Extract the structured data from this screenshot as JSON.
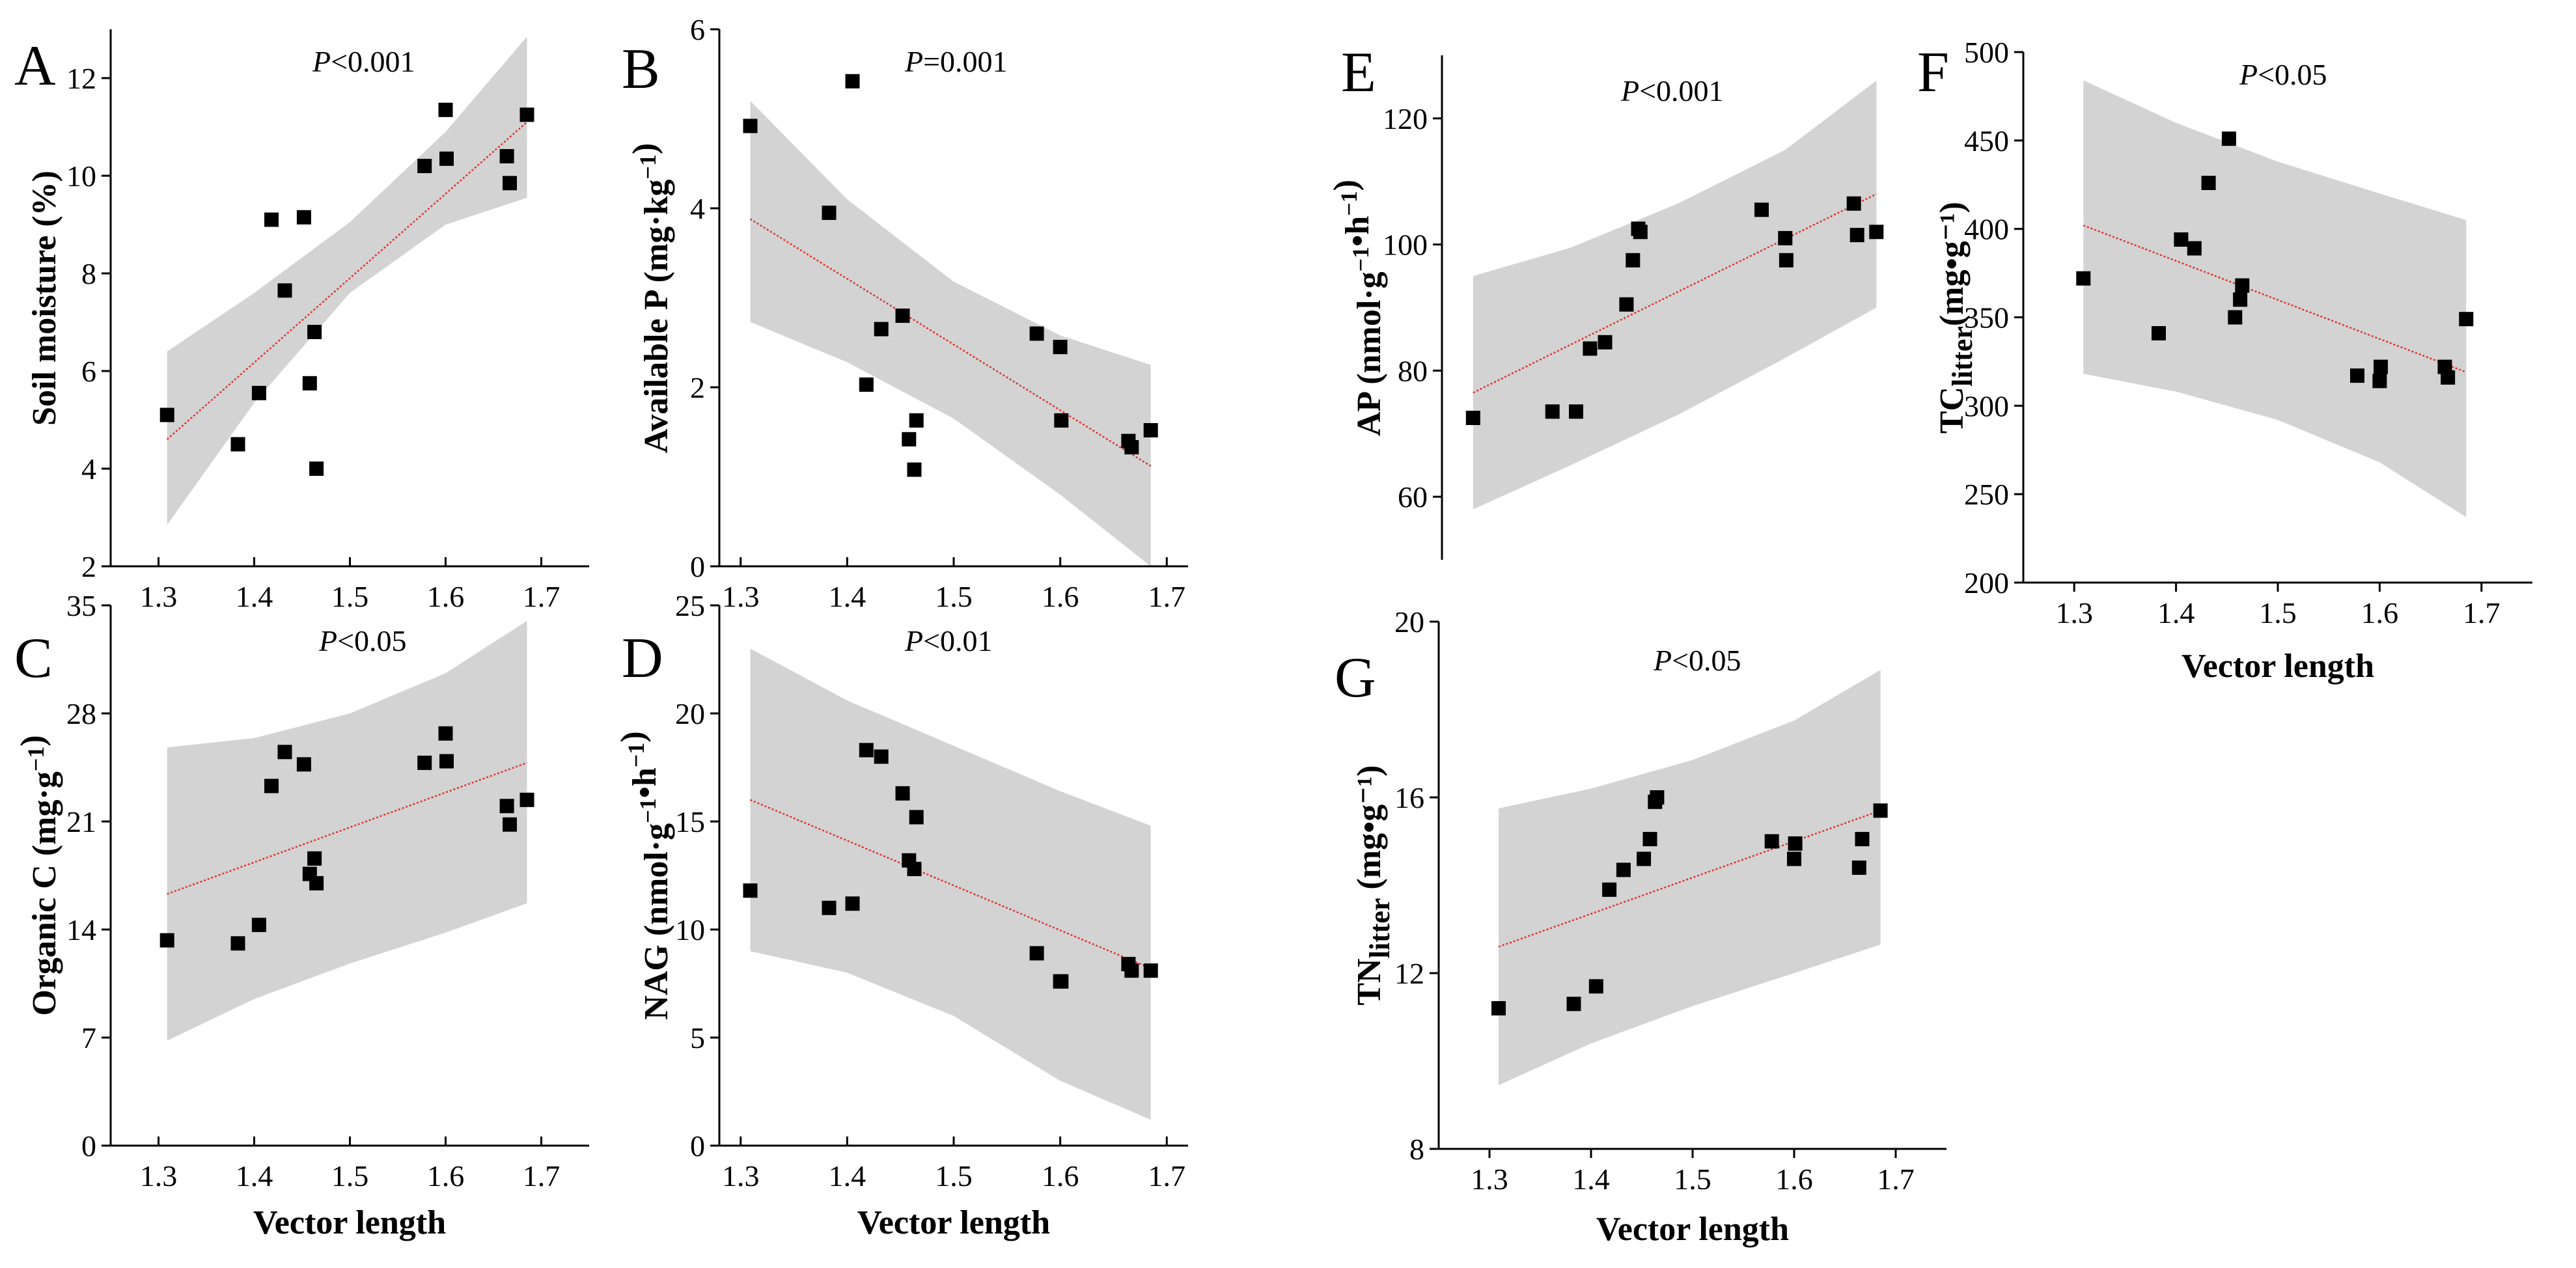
{
  "figure": {
    "colors": {
      "band": "#d3d3d3",
      "fit_line": "#e0302a",
      "points": "#000000",
      "axis": "#000000"
    }
  },
  "chart_data": [
    {
      "id": "A",
      "type": "scatter",
      "letter": "A",
      "ylabel": "Soil moisture (%)",
      "xlabel": "Vector length",
      "xlim": [
        1.25,
        1.75
      ],
      "ylim": [
        2,
        13
      ],
      "xticks": [
        1.3,
        1.4,
        1.5,
        1.6,
        1.7
      ],
      "xtick_labels": [
        "1.3",
        "1.4",
        "1.5",
        "1.6",
        "1.7"
      ],
      "yticks": [
        2,
        4,
        6,
        8,
        10,
        12
      ],
      "ytick_labels": [
        "2",
        "4",
        "6",
        "8",
        "10",
        "12"
      ],
      "p_prefix": "P",
      "p_rest": "<0.001",
      "points": [
        [
          1.309,
          5.1
        ],
        [
          1.383,
          4.5
        ],
        [
          1.405,
          5.55
        ],
        [
          1.418,
          9.1
        ],
        [
          1.432,
          7.65
        ],
        [
          1.452,
          9.15
        ],
        [
          1.458,
          5.75
        ],
        [
          1.463,
          6.8
        ],
        [
          1.465,
          4.0
        ],
        [
          1.578,
          10.2
        ],
        [
          1.6,
          11.35
        ],
        [
          1.601,
          10.35
        ],
        [
          1.664,
          10.4
        ],
        [
          1.667,
          9.85
        ],
        [
          1.685,
          11.25
        ]
      ],
      "fit": [
        [
          1.309,
          4.6
        ],
        [
          1.685,
          11.1
        ]
      ],
      "band_upper": [
        [
          1.309,
          6.4
        ],
        [
          1.4,
          7.6
        ],
        [
          1.5,
          9.05
        ],
        [
          1.6,
          10.9
        ],
        [
          1.685,
          12.85
        ]
      ],
      "band_lower": [
        [
          1.309,
          2.85
        ],
        [
          1.4,
          5.35
        ],
        [
          1.5,
          7.6
        ],
        [
          1.6,
          9.0
        ],
        [
          1.685,
          9.55
        ]
      ]
    },
    {
      "id": "B",
      "type": "scatter",
      "letter": "B",
      "ylabel": "Available P (mg·kg⁻¹)",
      "xlabel": "Vector length",
      "xlim": [
        1.28,
        1.72
      ],
      "ylim": [
        0,
        6
      ],
      "xticks": [
        1.3,
        1.4,
        1.5,
        1.6,
        1.7
      ],
      "xtick_labels": [
        "1.3",
        "1.4",
        "1.5",
        "1.6",
        "1.7"
      ],
      "yticks": [
        0,
        2,
        4,
        6
      ],
      "ytick_labels": [
        "0",
        "2",
        "4",
        "6"
      ],
      "p_prefix": "P",
      "p_rest": "=0.001",
      "points": [
        [
          1.309,
          4.92
        ],
        [
          1.383,
          3.95
        ],
        [
          1.405,
          5.42
        ],
        [
          1.418,
          2.03
        ],
        [
          1.432,
          2.65
        ],
        [
          1.452,
          2.8
        ],
        [
          1.458,
          1.42
        ],
        [
          1.463,
          1.08
        ],
        [
          1.465,
          1.63
        ],
        [
          1.578,
          2.6
        ],
        [
          1.6,
          2.45
        ],
        [
          1.601,
          1.63
        ],
        [
          1.664,
          1.4
        ],
        [
          1.667,
          1.33
        ],
        [
          1.685,
          1.52
        ]
      ],
      "fit": [
        [
          1.309,
          3.88
        ],
        [
          1.685,
          1.12
        ]
      ],
      "band_upper": [
        [
          1.309,
          5.2
        ],
        [
          1.4,
          4.1
        ],
        [
          1.5,
          3.18
        ],
        [
          1.6,
          2.58
        ],
        [
          1.685,
          2.25
        ]
      ],
      "band_lower": [
        [
          1.309,
          2.73
        ],
        [
          1.4,
          2.28
        ],
        [
          1.5,
          1.65
        ],
        [
          1.6,
          0.8
        ],
        [
          1.685,
          0.0
        ]
      ]
    },
    {
      "id": "C",
      "type": "scatter",
      "letter": "C",
      "ylabel": "Organic C (mg·g⁻¹)",
      "xlabel": "Vector length",
      "xlim": [
        1.25,
        1.75
      ],
      "ylim": [
        0,
        35
      ],
      "xticks": [
        1.3,
        1.4,
        1.5,
        1.6,
        1.7
      ],
      "xtick_labels": [
        "1.3",
        "1.4",
        "1.5",
        "1.6",
        "1.7"
      ],
      "yticks": [
        0,
        7,
        14,
        21,
        28,
        35
      ],
      "ytick_labels": [
        "0",
        "7",
        "14",
        "21",
        "28",
        "35"
      ],
      "p_prefix": "P",
      "p_rest": "<0.05",
      "points": [
        [
          1.309,
          13.3
        ],
        [
          1.383,
          13.1
        ],
        [
          1.405,
          14.3
        ],
        [
          1.418,
          23.3
        ],
        [
          1.432,
          25.5
        ],
        [
          1.452,
          24.7
        ],
        [
          1.458,
          17.6
        ],
        [
          1.463,
          18.6
        ],
        [
          1.465,
          17.0
        ],
        [
          1.578,
          24.8
        ],
        [
          1.6,
          26.7
        ],
        [
          1.601,
          24.9
        ],
        [
          1.664,
          22.0
        ],
        [
          1.667,
          20.8
        ],
        [
          1.685,
          22.4
        ]
      ],
      "fit": [
        [
          1.309,
          16.3
        ],
        [
          1.685,
          24.8
        ]
      ],
      "band_upper": [
        [
          1.309,
          25.8
        ],
        [
          1.4,
          26.4
        ],
        [
          1.5,
          28.0
        ],
        [
          1.6,
          30.6
        ],
        [
          1.685,
          34.0
        ]
      ],
      "band_lower": [
        [
          1.309,
          6.8
        ],
        [
          1.4,
          9.5
        ],
        [
          1.5,
          11.8
        ],
        [
          1.6,
          13.8
        ],
        [
          1.685,
          15.7
        ]
      ]
    },
    {
      "id": "D",
      "type": "scatter",
      "letter": "D",
      "ylabel": "NAG (nmol·g⁻¹•h⁻¹)",
      "xlabel": "Vector length",
      "xlim": [
        1.28,
        1.72
      ],
      "ylim": [
        0,
        25
      ],
      "xticks": [
        1.3,
        1.4,
        1.5,
        1.6,
        1.7
      ],
      "xtick_labels": [
        "1.3",
        "1.4",
        "1.5",
        "1.6",
        "1.7"
      ],
      "yticks": [
        0,
        5,
        10,
        15,
        20,
        25
      ],
      "ytick_labels": [
        "0",
        "5",
        "10",
        "15",
        "20",
        "25"
      ],
      "p_prefix": "P",
      "p_rest": "<0.01",
      "points": [
        [
          1.309,
          11.8
        ],
        [
          1.383,
          11.0
        ],
        [
          1.405,
          11.2
        ],
        [
          1.418,
          18.3
        ],
        [
          1.432,
          18.0
        ],
        [
          1.452,
          16.3
        ],
        [
          1.458,
          13.2
        ],
        [
          1.463,
          12.8
        ],
        [
          1.465,
          15.2
        ],
        [
          1.578,
          8.9
        ],
        [
          1.6,
          7.6
        ],
        [
          1.601,
          7.6
        ],
        [
          1.664,
          8.4
        ],
        [
          1.667,
          8.1
        ],
        [
          1.685,
          8.1
        ]
      ],
      "fit": [
        [
          1.309,
          16.0
        ],
        [
          1.685,
          8.2
        ]
      ],
      "band_upper": [
        [
          1.309,
          23.0
        ],
        [
          1.4,
          20.6
        ],
        [
          1.5,
          18.5
        ],
        [
          1.6,
          16.4
        ],
        [
          1.685,
          14.8
        ]
      ],
      "band_lower": [
        [
          1.309,
          9.0
        ],
        [
          1.4,
          8.0
        ],
        [
          1.5,
          6.0
        ],
        [
          1.6,
          3.0
        ],
        [
          1.685,
          1.2
        ]
      ]
    },
    {
      "id": "E",
      "type": "scatter",
      "letter": "E",
      "ylabel": "AP (nmol·g⁻¹•h⁻¹)",
      "xlabel": "",
      "xlim": [
        1.28,
        1.72
      ],
      "ylim": [
        50,
        130
      ],
      "xticks": [],
      "xtick_labels": [],
      "yticks": [
        60,
        80,
        100,
        120
      ],
      "ytick_labels": [
        "60",
        "80",
        "100",
        "120"
      ],
      "p_prefix": "P",
      "p_rest": "<0.001",
      "points": [
        [
          1.309,
          72.5
        ],
        [
          1.383,
          73.5
        ],
        [
          1.405,
          73.5
        ],
        [
          1.418,
          83.5
        ],
        [
          1.432,
          84.5
        ],
        [
          1.452,
          90.5
        ],
        [
          1.458,
          97.5
        ],
        [
          1.463,
          102.5
        ],
        [
          1.465,
          102.0
        ],
        [
          1.578,
          105.5
        ],
        [
          1.6,
          101.0
        ],
        [
          1.601,
          97.5
        ],
        [
          1.664,
          106.5
        ],
        [
          1.667,
          101.5
        ],
        [
          1.685,
          102.0
        ]
      ],
      "fit": [
        [
          1.309,
          76.5
        ],
        [
          1.685,
          108.0
        ]
      ],
      "band_upper": [
        [
          1.309,
          95.0
        ],
        [
          1.4,
          99.5
        ],
        [
          1.5,
          106.5
        ],
        [
          1.6,
          115.0
        ],
        [
          1.685,
          126.0
        ]
      ],
      "band_lower": [
        [
          1.309,
          58.0
        ],
        [
          1.4,
          65.0
        ],
        [
          1.5,
          73.0
        ],
        [
          1.6,
          82.0
        ],
        [
          1.685,
          90.0
        ]
      ]
    },
    {
      "id": "F",
      "type": "scatter",
      "letter": "F",
      "ylabel": "TClitter(mg•g⁻¹)",
      "xlabel": "Vector length",
      "xlim": [
        1.25,
        1.75
      ],
      "ylim": [
        200,
        500
      ],
      "xticks": [
        1.3,
        1.4,
        1.5,
        1.6,
        1.7
      ],
      "xtick_labels": [
        "1.3",
        "1.4",
        "1.5",
        "1.6",
        "1.7"
      ],
      "yticks": [
        200,
        250,
        300,
        350,
        400,
        450,
        500
      ],
      "ytick_labels": [
        "200",
        "250",
        "300",
        "350",
        "400",
        "450",
        "500"
      ],
      "p_prefix": "P",
      "p_rest": "<0.05",
      "points": [
        [
          1.309,
          372
        ],
        [
          1.383,
          341
        ],
        [
          1.405,
          394
        ],
        [
          1.418,
          389
        ],
        [
          1.432,
          426
        ],
        [
          1.452,
          451
        ],
        [
          1.458,
          350
        ],
        [
          1.463,
          360
        ],
        [
          1.465,
          368
        ],
        [
          1.578,
          317
        ],
        [
          1.6,
          314
        ],
        [
          1.601,
          322
        ],
        [
          1.664,
          322
        ],
        [
          1.667,
          316
        ],
        [
          1.685,
          349
        ]
      ],
      "fit": [
        [
          1.309,
          402
        ],
        [
          1.685,
          319
        ]
      ],
      "band_upper": [
        [
          1.309,
          484
        ],
        [
          1.4,
          460
        ],
        [
          1.5,
          438
        ],
        [
          1.6,
          420
        ],
        [
          1.685,
          405
        ]
      ],
      "band_lower": [
        [
          1.309,
          318
        ],
        [
          1.4,
          308
        ],
        [
          1.5,
          292
        ],
        [
          1.6,
          268
        ],
        [
          1.685,
          237
        ]
      ]
    },
    {
      "id": "G",
      "type": "scatter",
      "letter": "G",
      "ylabel": "TNlitter (mg•g⁻¹)",
      "xlabel": "Vector length",
      "xlim": [
        1.25,
        1.75
      ],
      "ylim": [
        8,
        20
      ],
      "xticks": [
        1.3,
        1.4,
        1.5,
        1.6,
        1.7
      ],
      "xtick_labels": [
        "1.3",
        "1.4",
        "1.5",
        "1.6",
        "1.7"
      ],
      "yticks": [
        8,
        12,
        16,
        20
      ],
      "ytick_labels": [
        "8",
        "12",
        "16",
        "20"
      ],
      "p_prefix": "P",
      "p_rest": "<0.05",
      "points": [
        [
          1.309,
          11.2
        ],
        [
          1.383,
          11.3
        ],
        [
          1.405,
          11.7
        ],
        [
          1.418,
          13.9
        ],
        [
          1.432,
          14.35
        ],
        [
          1.452,
          14.6
        ],
        [
          1.458,
          15.05
        ],
        [
          1.463,
          15.9
        ],
        [
          1.465,
          16.0
        ],
        [
          1.578,
          15.0
        ],
        [
          1.6,
          14.6
        ],
        [
          1.601,
          14.95
        ],
        [
          1.664,
          14.4
        ],
        [
          1.667,
          15.05
        ],
        [
          1.685,
          15.7
        ]
      ],
      "fit": [
        [
          1.309,
          12.6
        ],
        [
          1.685,
          15.7
        ]
      ],
      "band_upper": [
        [
          1.309,
          15.75
        ],
        [
          1.4,
          16.2
        ],
        [
          1.5,
          16.85
        ],
        [
          1.6,
          17.75
        ],
        [
          1.685,
          18.9
        ]
      ],
      "band_lower": [
        [
          1.309,
          9.45
        ],
        [
          1.4,
          10.4
        ],
        [
          1.5,
          11.25
        ],
        [
          1.6,
          12.0
        ],
        [
          1.685,
          12.65
        ]
      ]
    }
  ]
}
